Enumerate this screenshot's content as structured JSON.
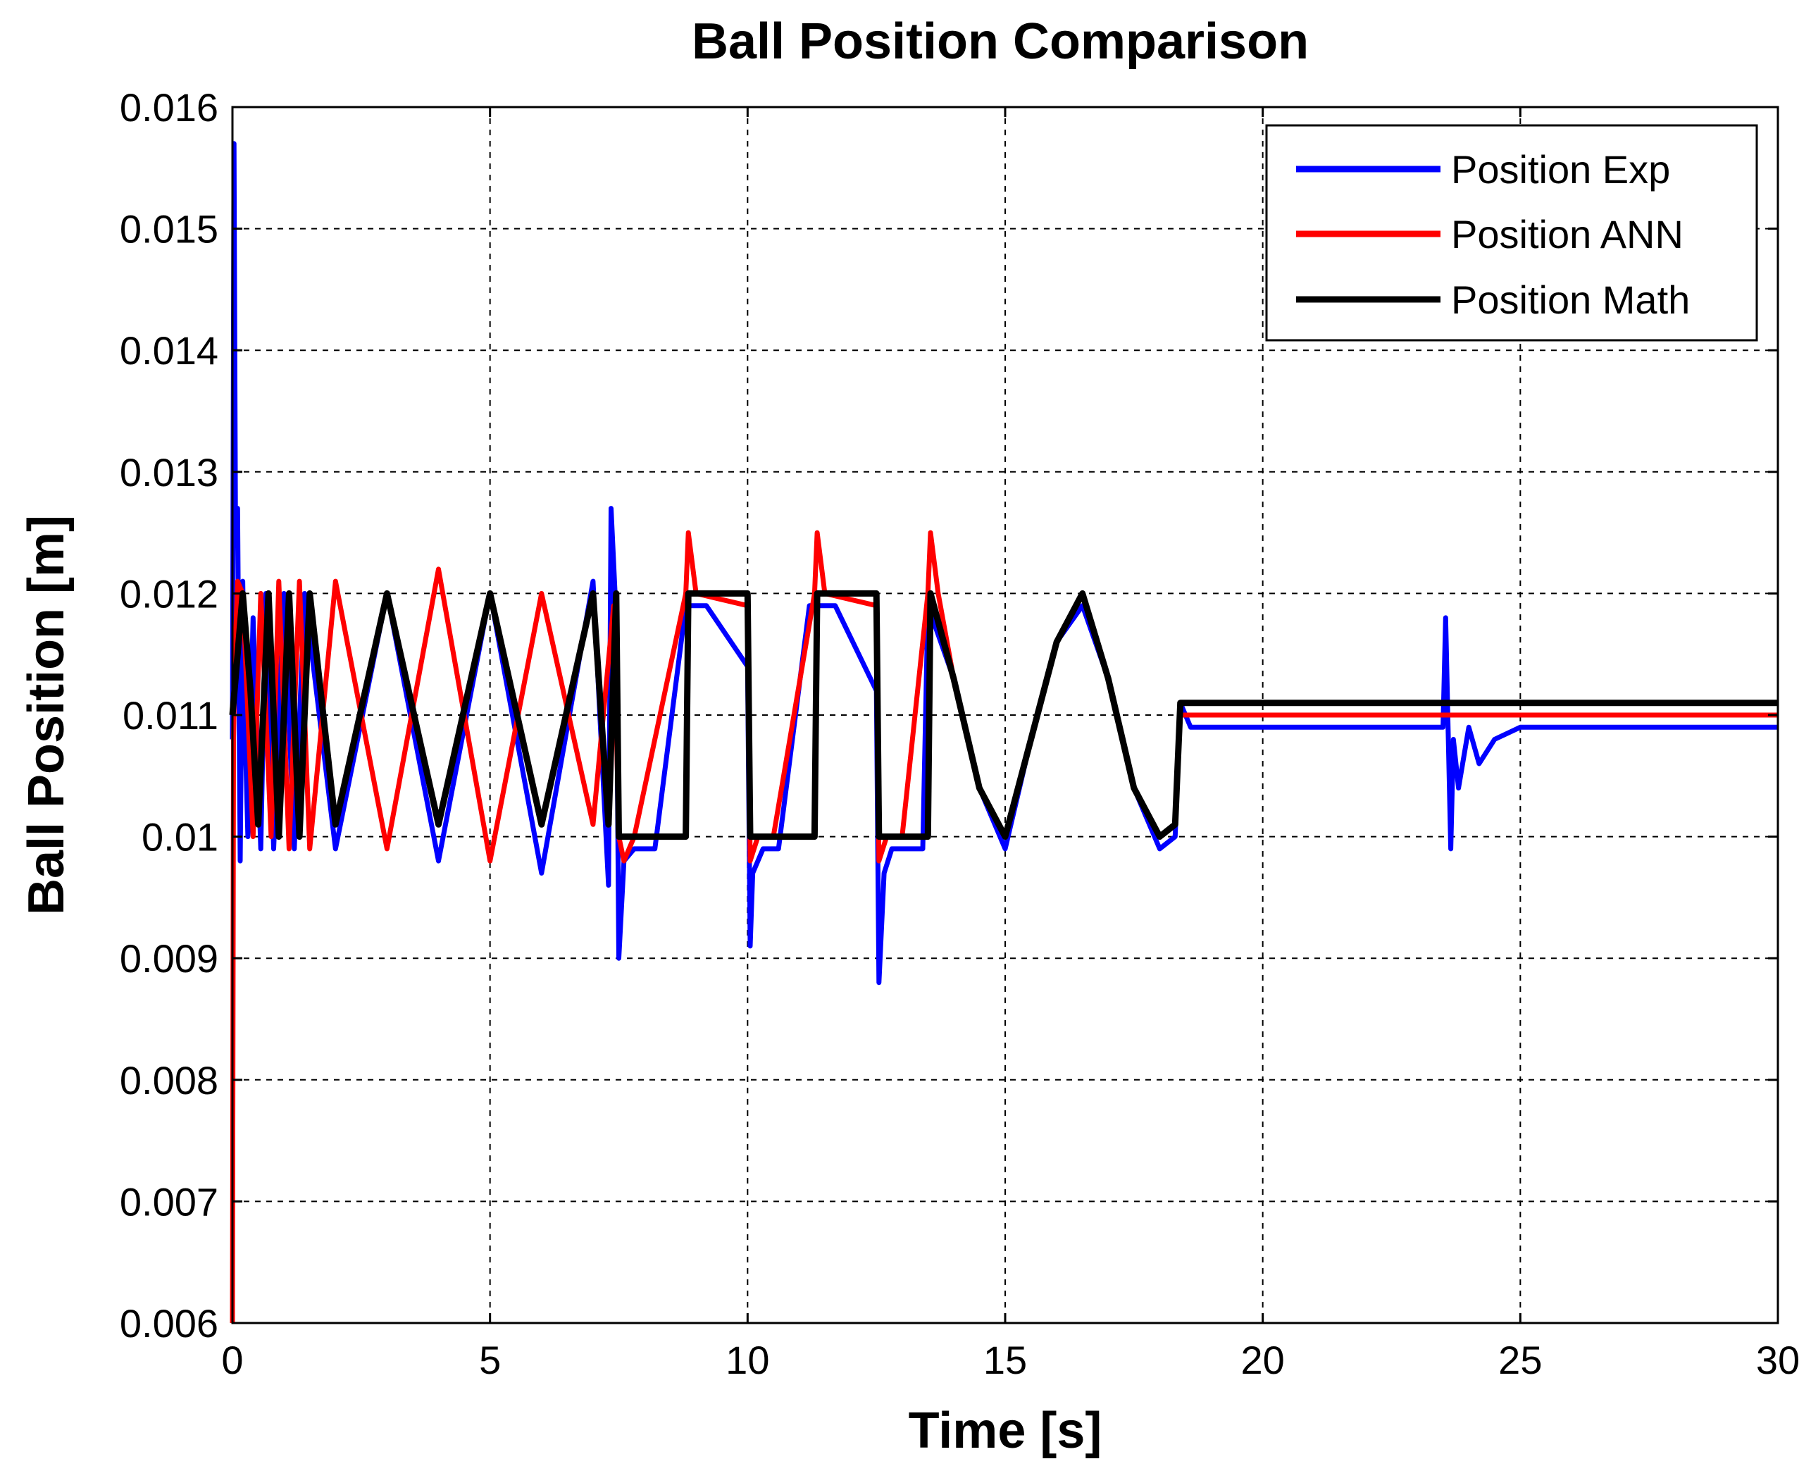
{
  "chart_data": {
    "type": "line",
    "title": "Ball Position Comparison",
    "xlabel": "Time [s]",
    "ylabel": "Ball Position [m]",
    "xlim": [
      0,
      30
    ],
    "ylim": [
      0.006,
      0.016
    ],
    "grid": true,
    "legend_position": "top-right",
    "x_ticks": [
      0,
      5,
      10,
      15,
      20,
      25,
      30
    ],
    "x_tick_labels": [
      "0",
      "5",
      "10",
      "15",
      "20",
      "25",
      "30"
    ],
    "y_ticks": [
      0.006,
      0.007,
      0.008,
      0.009,
      0.01,
      0.011,
      0.012,
      0.013,
      0.014,
      0.015,
      0.016
    ],
    "y_tick_labels": [
      "0.006",
      "0.007",
      "0.008",
      "0.009",
      "0.01",
      "0.011",
      "0.012",
      "0.013",
      "0.014",
      "0.015",
      "0.016"
    ],
    "series": [
      {
        "name": "Position Exp",
        "color": "#0000ff",
        "x": [
          0,
          0.03,
          0.06,
          0.1,
          0.15,
          0.2,
          0.25,
          0.3,
          0.4,
          0.55,
          0.65,
          0.8,
          1.0,
          1.2,
          1.4,
          2.0,
          3.0,
          4.0,
          5.0,
          6.0,
          7.0,
          7.3,
          7.35,
          7.45,
          7.5,
          7.6,
          7.8,
          8.2,
          8.8,
          8.85,
          9.2,
          10.0,
          10.05,
          10.1,
          10.3,
          10.6,
          11.2,
          11.3,
          11.4,
          11.7,
          12.5,
          12.55,
          12.65,
          12.8,
          13.4,
          13.5,
          14.0,
          14.5,
          15.0,
          15.5,
          16.0,
          16.5,
          17.0,
          17.5,
          18.0,
          18.3,
          18.4,
          18.6,
          19.5,
          21.0,
          22.5,
          23.5,
          23.55,
          23.65,
          23.7,
          23.8,
          24.0,
          24.2,
          24.5,
          25.0,
          26.0,
          27.0,
          28.0,
          29.0,
          30.0
        ],
        "values": [
          0.0108,
          0.0157,
          0.0124,
          0.0127,
          0.0098,
          0.0121,
          0.0108,
          0.01,
          0.0118,
          0.0099,
          0.012,
          0.0099,
          0.012,
          0.0099,
          0.012,
          0.0099,
          0.012,
          0.0098,
          0.012,
          0.0097,
          0.0121,
          0.0096,
          0.0127,
          0.0118,
          0.009,
          0.0098,
          0.0099,
          0.0099,
          0.0119,
          0.0119,
          0.0119,
          0.0114,
          0.0091,
          0.0097,
          0.0099,
          0.0099,
          0.0119,
          0.0119,
          0.0119,
          0.0119,
          0.0112,
          0.0088,
          0.0097,
          0.0099,
          0.0099,
          0.0119,
          0.0113,
          0.0104,
          0.0099,
          0.0108,
          0.0116,
          0.0119,
          0.0113,
          0.0104,
          0.0099,
          0.01,
          0.0111,
          0.0109,
          0.0109,
          0.0109,
          0.0109,
          0.0109,
          0.0118,
          0.0099,
          0.0108,
          0.0104,
          0.0109,
          0.0106,
          0.0108,
          0.0109,
          0.0109,
          0.0109,
          0.0109,
          0.0109,
          0.0109
        ]
      },
      {
        "name": "Position ANN",
        "color": "#ff0000",
        "x": [
          0,
          0.02,
          0.05,
          0.1,
          0.2,
          0.4,
          0.55,
          0.75,
          0.9,
          1.1,
          1.3,
          1.5,
          2.0,
          3.0,
          4.0,
          5.0,
          6.0,
          7.0,
          7.4,
          7.5,
          7.6,
          7.8,
          8.8,
          8.85,
          9.0,
          10.0,
          10.05,
          10.2,
          10.5,
          11.3,
          11.35,
          11.5,
          12.5,
          12.55,
          12.7,
          13.0,
          13.5,
          13.55,
          13.7,
          14.0,
          14.5,
          15.0,
          15.5,
          16.0,
          16.5,
          17.0,
          17.5,
          18.0,
          18.3,
          18.4,
          20.0,
          23.0,
          25.0,
          30.0
        ],
        "values": [
          0.006,
          0.0108,
          0.0115,
          0.0121,
          0.012,
          0.01,
          0.012,
          0.01,
          0.0121,
          0.0099,
          0.0121,
          0.0099,
          0.0121,
          0.0099,
          0.0122,
          0.0098,
          0.012,
          0.0101,
          0.0119,
          0.01,
          0.0098,
          0.01,
          0.012,
          0.0125,
          0.012,
          0.0119,
          0.0098,
          0.01,
          0.01,
          0.012,
          0.0125,
          0.012,
          0.0119,
          0.0098,
          0.01,
          0.01,
          0.012,
          0.0125,
          0.012,
          0.0113,
          0.0104,
          0.01,
          0.0108,
          0.0116,
          0.012,
          0.0113,
          0.0104,
          0.01,
          0.0101,
          0.011,
          0.011,
          0.011,
          0.011,
          0.011
        ]
      },
      {
        "name": "Position Math",
        "color": "#000000",
        "x": [
          0,
          0.1,
          0.2,
          0.35,
          0.5,
          0.7,
          0.9,
          1.1,
          1.3,
          1.5,
          2.0,
          3.0,
          4.0,
          5.0,
          6.0,
          7.0,
          7.3,
          7.45,
          7.5,
          8.8,
          8.85,
          10.0,
          10.05,
          11.3,
          11.35,
          12.5,
          12.55,
          13.5,
          13.55,
          14.0,
          14.5,
          15.0,
          15.5,
          16.0,
          16.5,
          17.0,
          17.5,
          18.0,
          18.3,
          18.4,
          20.0,
          23.0,
          25.0,
          30.0
        ],
        "values": [
          0.011,
          0.0115,
          0.012,
          0.0112,
          0.0101,
          0.012,
          0.01,
          0.012,
          0.01,
          0.012,
          0.0101,
          0.012,
          0.0101,
          0.012,
          0.0101,
          0.012,
          0.0101,
          0.012,
          0.01,
          0.01,
          0.012,
          0.012,
          0.01,
          0.01,
          0.012,
          0.012,
          0.01,
          0.01,
          0.012,
          0.0113,
          0.0104,
          0.01,
          0.0108,
          0.0116,
          0.012,
          0.0113,
          0.0104,
          0.01,
          0.0101,
          0.0111,
          0.0111,
          0.0111,
          0.0111,
          0.0111
        ]
      }
    ]
  }
}
